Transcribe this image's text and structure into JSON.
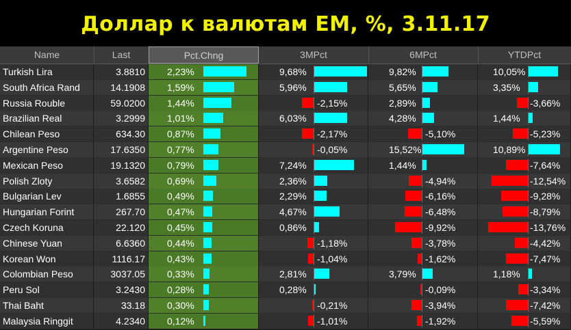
{
  "title": "Доллар к валютам EM, %, 3.11.17",
  "headers": {
    "name": "Name",
    "last": "Last",
    "pct": "Pct.Chng",
    "m3": "3MPct",
    "m6": "6MPct",
    "ytd": "YTDPct"
  },
  "colors": {
    "positive_bar": "#00ffff",
    "negative_bar": "#ff0000",
    "pct_column_bg": "#4a7a25",
    "title_text": "#f0f000"
  },
  "rows": [
    {
      "name": "Turkish Lira",
      "last": "3.8810",
      "pct": "2,23%",
      "pct_v": 2.23,
      "m3": "9,68%",
      "m3_v": 9.68,
      "m6": "9,82%",
      "m6_v": 9.82,
      "ytd": "10,05%",
      "ytd_v": 10.05
    },
    {
      "name": "South Africa Rand",
      "last": "14.1908",
      "pct": "1,59%",
      "pct_v": 1.59,
      "m3": "5,96%",
      "m3_v": 5.96,
      "m6": "5,65%",
      "m6_v": 5.65,
      "ytd": "3,35%",
      "ytd_v": 3.35
    },
    {
      "name": "Russia Rouble",
      "last": "59.0200",
      "pct": "1,44%",
      "pct_v": 1.44,
      "m3": "-2,15%",
      "m3_v": -2.15,
      "m6": "2,89%",
      "m6_v": 2.89,
      "ytd": "-3,66%",
      "ytd_v": -3.66
    },
    {
      "name": "Brazilian Real",
      "last": "3.2999",
      "pct": "1,01%",
      "pct_v": 1.01,
      "m3": "6,03%",
      "m3_v": 6.03,
      "m6": "4,28%",
      "m6_v": 4.28,
      "ytd": "1,44%",
      "ytd_v": 1.44
    },
    {
      "name": "Chilean Peso",
      "last": "634.30",
      "pct": "0,87%",
      "pct_v": 0.87,
      "m3": "-2,17%",
      "m3_v": -2.17,
      "m6": "-5,10%",
      "m6_v": -5.1,
      "ytd": "-5,23%",
      "ytd_v": -5.23
    },
    {
      "name": "Argentine Peso",
      "last": "17.6350",
      "pct": "0,77%",
      "pct_v": 0.77,
      "m3": "-0,05%",
      "m3_v": -0.05,
      "m6": "15,52%",
      "m6_v": 15.52,
      "ytd": "10,89%",
      "ytd_v": 10.89
    },
    {
      "name": "Mexican Peso",
      "last": "19.1320",
      "pct": "0,79%",
      "pct_v": 0.79,
      "m3": "7,24%",
      "m3_v": 7.24,
      "m6": "1,44%",
      "m6_v": 1.44,
      "ytd": "-7,64%",
      "ytd_v": -7.64
    },
    {
      "name": "Polish Zloty",
      "last": "3.6582",
      "pct": "0,69%",
      "pct_v": 0.69,
      "m3": "2,36%",
      "m3_v": 2.36,
      "m6": "-4,94%",
      "m6_v": -4.94,
      "ytd": "-12,54%",
      "ytd_v": -12.54
    },
    {
      "name": "Bulgarian Lev",
      "last": "1.6855",
      "pct": "0,49%",
      "pct_v": 0.49,
      "m3": "2,29%",
      "m3_v": 2.29,
      "m6": "-6,16%",
      "m6_v": -6.16,
      "ytd": "-9,28%",
      "ytd_v": -9.28
    },
    {
      "name": "Hungarian Forint",
      "last": "267.70",
      "pct": "0,47%",
      "pct_v": 0.47,
      "m3": "4,67%",
      "m3_v": 4.67,
      "m6": "-6,48%",
      "m6_v": -6.48,
      "ytd": "-8,79%",
      "ytd_v": -8.79
    },
    {
      "name": "Czech Koruna",
      "last": "22.120",
      "pct": "0,45%",
      "pct_v": 0.45,
      "m3": "0,86%",
      "m3_v": 0.86,
      "m6": "-9,92%",
      "m6_v": -9.92,
      "ytd": "-13,76%",
      "ytd_v": -13.76
    },
    {
      "name": "Chinese Yuan",
      "last": "6.6360",
      "pct": "0,44%",
      "pct_v": 0.44,
      "m3": "-1,18%",
      "m3_v": -1.18,
      "m6": "-3,78%",
      "m6_v": -3.78,
      "ytd": "-4,42%",
      "ytd_v": -4.42
    },
    {
      "name": "Korean Won",
      "last": "1116.17",
      "pct": "0,43%",
      "pct_v": 0.43,
      "m3": "-1,04%",
      "m3_v": -1.04,
      "m6": "-1,62%",
      "m6_v": -1.62,
      "ytd": "-7,47%",
      "ytd_v": -7.47
    },
    {
      "name": "Colombian Peso",
      "last": "3037.05",
      "pct": "0,33%",
      "pct_v": 0.33,
      "m3": "2,81%",
      "m3_v": 2.81,
      "m6": "3,79%",
      "m6_v": 3.79,
      "ytd": "1,18%",
      "ytd_v": 1.18
    },
    {
      "name": "Peru Sol",
      "last": "3.2430",
      "pct": "0,28%",
      "pct_v": 0.28,
      "m3": "0,28%",
      "m3_v": 0.28,
      "m6": "-0,09%",
      "m6_v": -0.09,
      "ytd": "-3,34%",
      "ytd_v": -3.34
    },
    {
      "name": "Thai Baht",
      "last": "33.18",
      "pct": "0,30%",
      "pct_v": 0.3,
      "m3": "-0,21%",
      "m3_v": -0.21,
      "m6": "-3,94%",
      "m6_v": -3.94,
      "ytd": "-7,42%",
      "ytd_v": -7.42
    },
    {
      "name": "Malaysia Ringgit",
      "last": "4.2340",
      "pct": "0,12%",
      "pct_v": 0.12,
      "m3": "-1,01%",
      "m3_v": -1.01,
      "m6": "-1,92%",
      "m6_v": -1.92,
      "ytd": "-5,59%",
      "ytd_v": -5.59
    }
  ]
}
